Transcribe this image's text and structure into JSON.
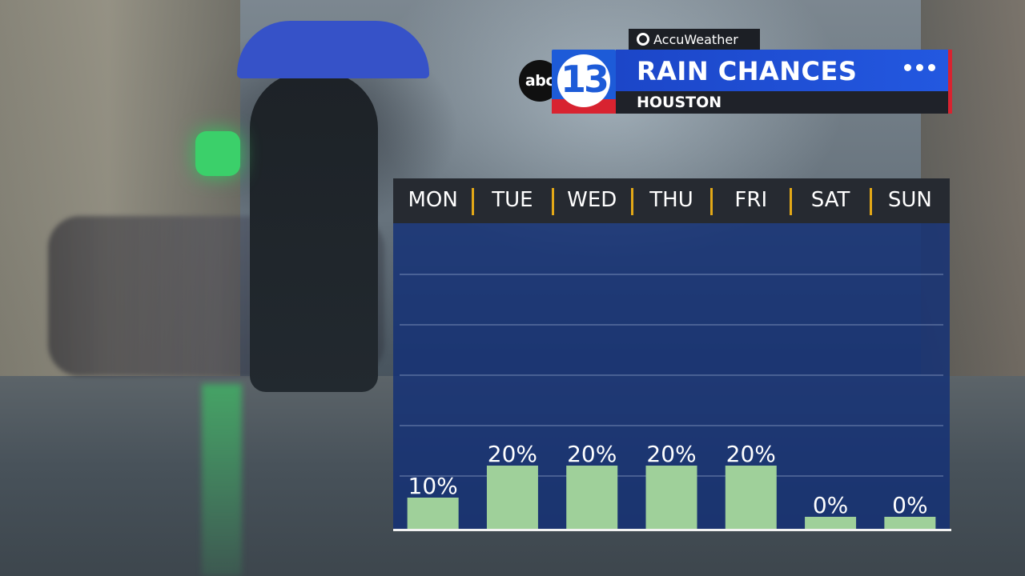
{
  "header": {
    "accuweather_label": "AccuWeather",
    "logo_abc": "abc",
    "logo_13": "13",
    "title": "RAIN CHANCES",
    "location": "HOUSTON"
  },
  "colors": {
    "bar": "#9fd09a",
    "separator": "#e3a817",
    "title_bar": "#1c46c8",
    "panel": "#123076",
    "accent_red": "#d82330"
  },
  "chart_data": {
    "type": "bar",
    "categories": [
      "MON",
      "TUE",
      "WED",
      "THU",
      "FRI",
      "SAT",
      "SUN"
    ],
    "values": [
      10,
      20,
      20,
      20,
      20,
      0,
      0
    ],
    "value_labels": [
      "10%",
      "20%",
      "20%",
      "20%",
      "20%",
      "0%",
      "0%"
    ],
    "ylim": [
      0,
      60
    ],
    "grid": true,
    "gridlines": [
      10,
      20,
      30,
      40,
      50
    ]
  }
}
